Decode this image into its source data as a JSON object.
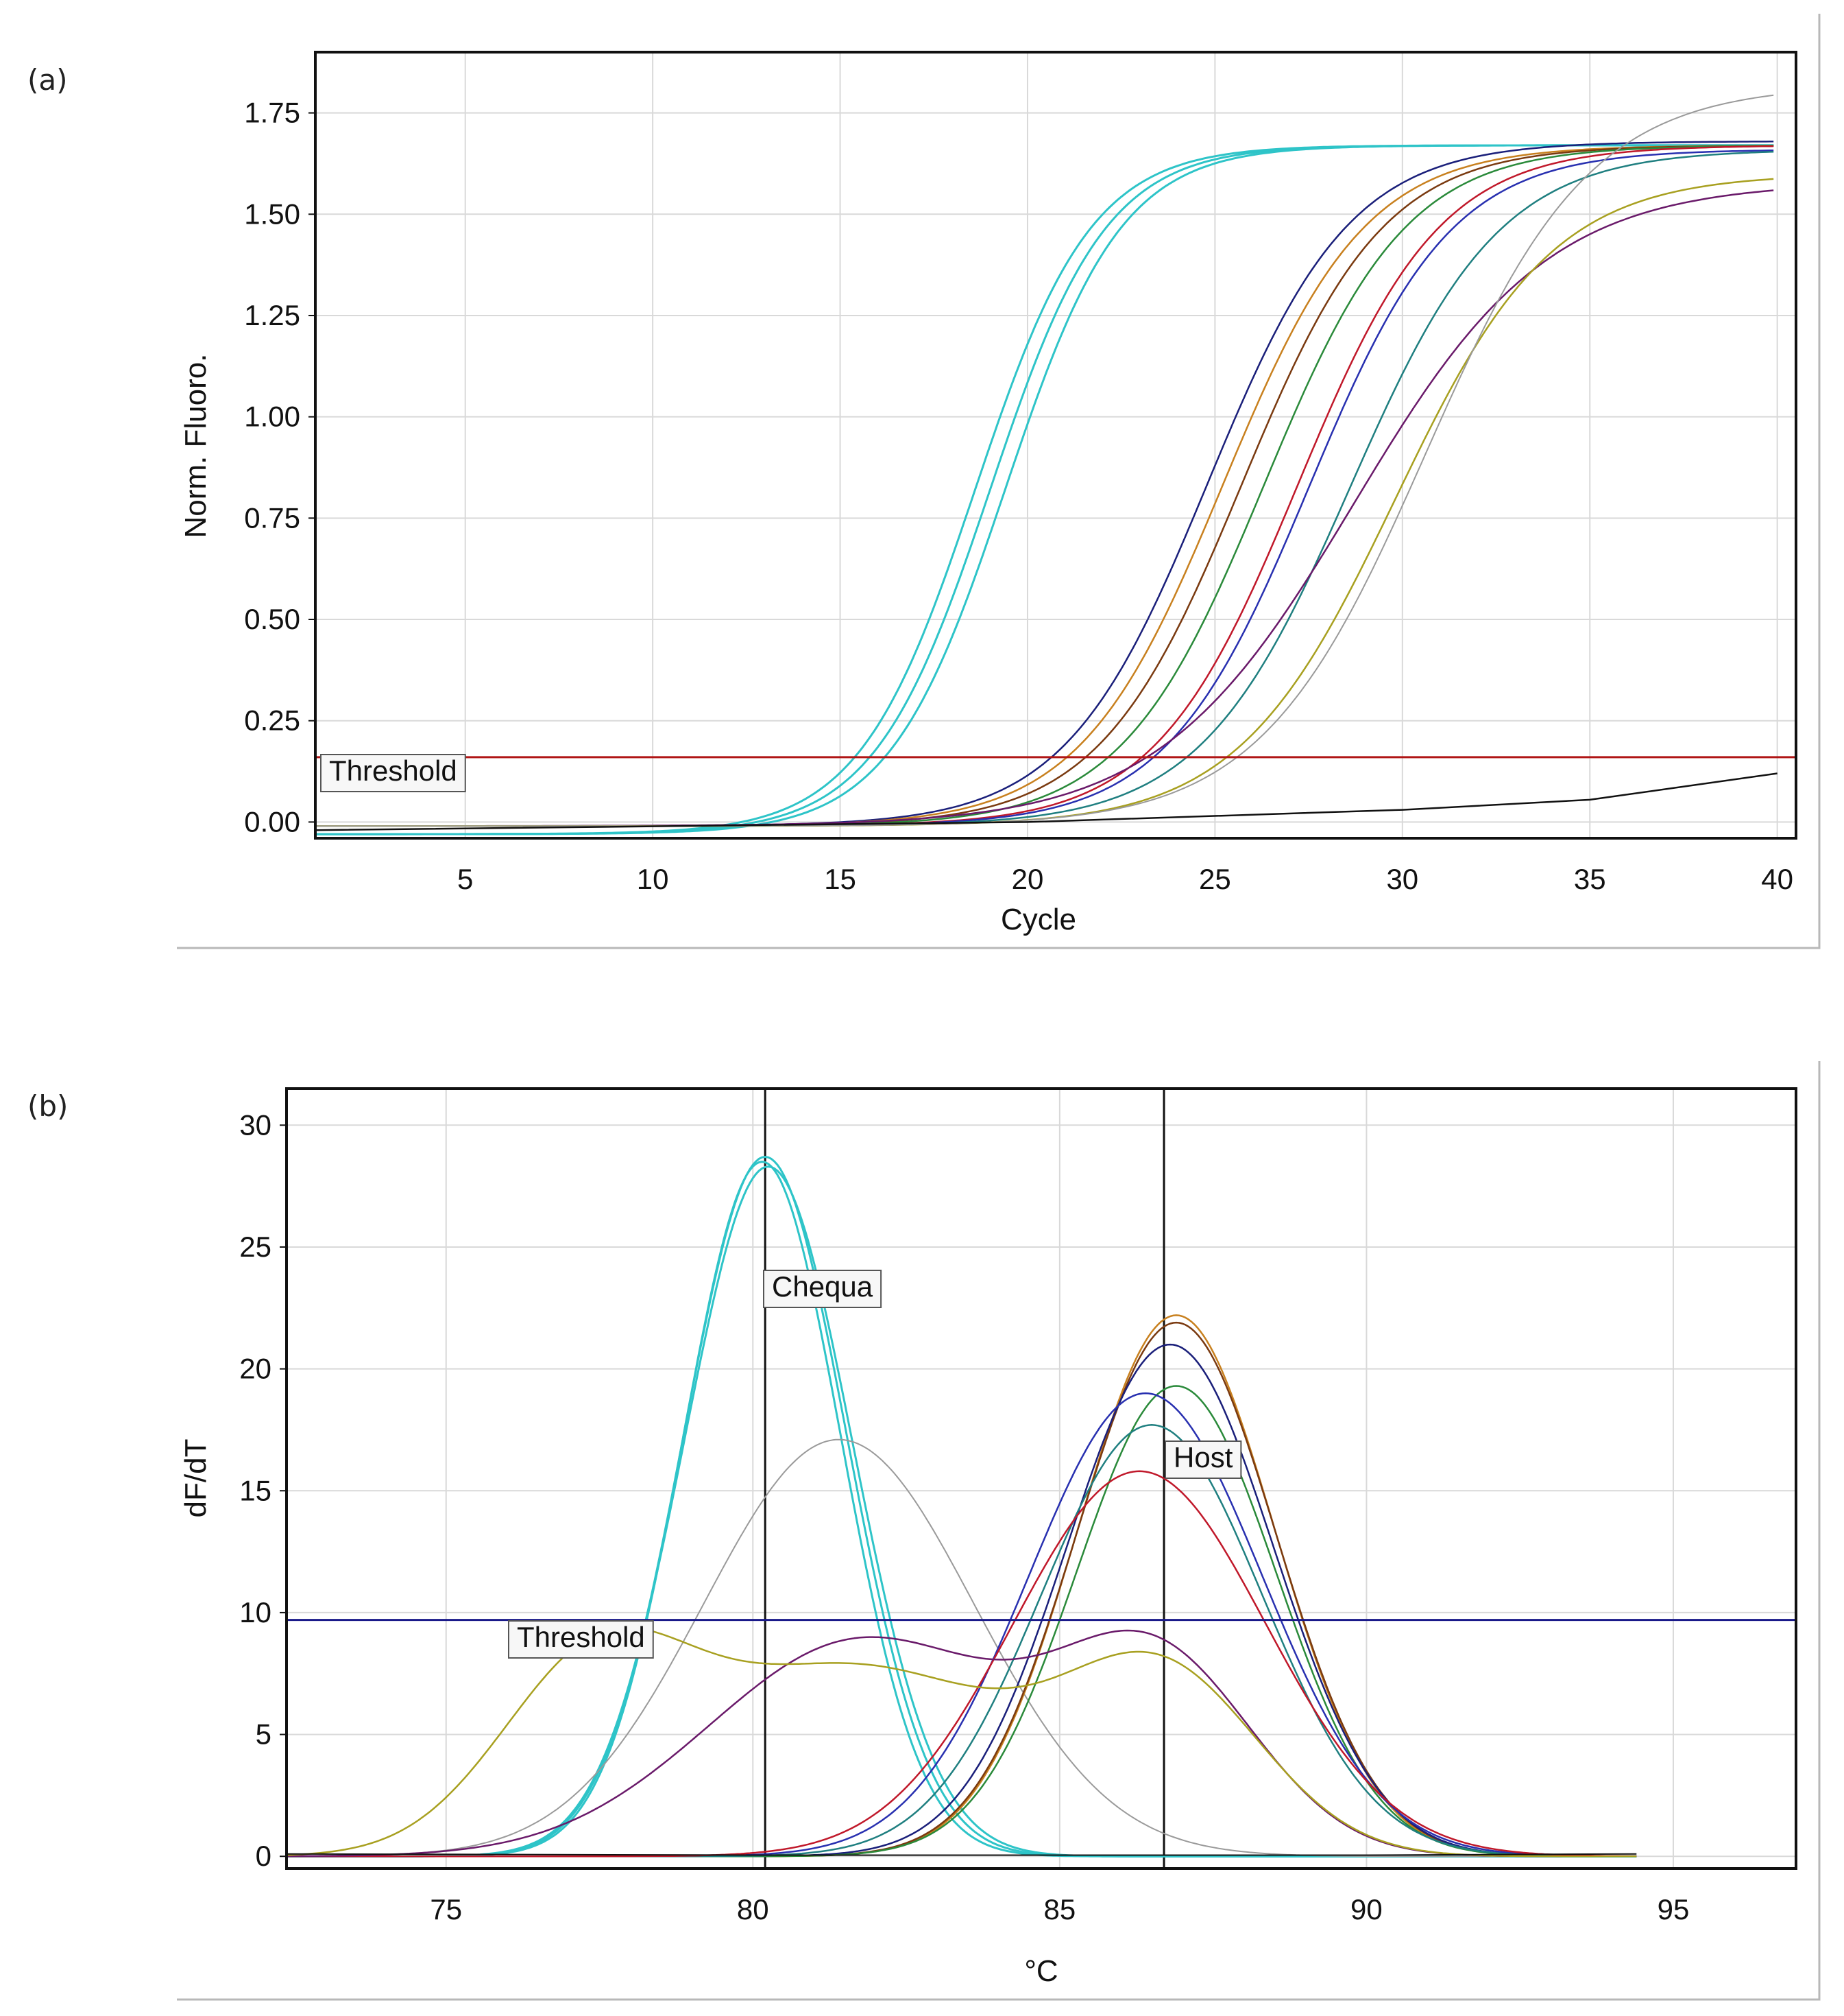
{
  "figure": {
    "panel_a_label": "(a)",
    "panel_b_label": "(b)"
  },
  "chart_data": [
    {
      "type": "line",
      "panel": "(a)",
      "xlabel": "Cycle",
      "ylabel": "Norm. Fluoro.",
      "xlim": [
        1,
        40.5
      ],
      "ylim": [
        -0.04,
        1.9
      ],
      "xticks": [
        5,
        10,
        15,
        20,
        25,
        30,
        35,
        40
      ],
      "yticks": [
        0.0,
        0.25,
        0.5,
        0.75,
        1.0,
        1.25,
        1.5,
        1.75
      ],
      "ytick_labels": [
        "0.00",
        "0.25",
        "0.50",
        "0.75",
        "1.00",
        "1.25",
        "1.50",
        "1.75"
      ],
      "grid": true,
      "threshold": {
        "label": "Threshold",
        "value": 0.16,
        "color": "#b01515"
      },
      "series": [
        {
          "name": "cyan-1",
          "color": "#2ec4c8",
          "curve": "sigmoid",
          "ct": 18.6,
          "plateau": 1.67,
          "slope": 1.55,
          "base": -0.03,
          "width": 3
        },
        {
          "name": "cyan-2",
          "color": "#2ec4c8",
          "curve": "sigmoid",
          "ct": 19.0,
          "plateau": 1.67,
          "slope": 1.55,
          "base": -0.03,
          "width": 3
        },
        {
          "name": "cyan-3",
          "color": "#2ec4c8",
          "curve": "sigmoid",
          "ct": 19.4,
          "plateau": 1.67,
          "slope": 1.55,
          "base": -0.03,
          "width": 3
        },
        {
          "name": "navy",
          "color": "#1a1f7a",
          "curve": "sigmoid",
          "ct": 24.8,
          "plateau": 1.68,
          "slope": 1.9,
          "base": -0.01,
          "width": 2.5
        },
        {
          "name": "orange",
          "color": "#c8801e",
          "curve": "sigmoid",
          "ct": 25.2,
          "plateau": 1.67,
          "slope": 1.9,
          "base": -0.01,
          "width": 2.5
        },
        {
          "name": "brown",
          "color": "#7a3a10",
          "curve": "sigmoid",
          "ct": 25.7,
          "plateau": 1.67,
          "slope": 1.9,
          "base": -0.01,
          "width": 2.5
        },
        {
          "name": "green",
          "color": "#2a8a3a",
          "curve": "sigmoid",
          "ct": 26.3,
          "plateau": 1.67,
          "slope": 1.9,
          "base": -0.01,
          "width": 2.5
        },
        {
          "name": "red",
          "color": "#c0182a",
          "curve": "sigmoid",
          "ct": 27.2,
          "plateau": 1.67,
          "slope": 1.9,
          "base": -0.01,
          "width": 2.5
        },
        {
          "name": "blue",
          "color": "#2830b0",
          "curve": "sigmoid",
          "ct": 27.5,
          "plateau": 1.66,
          "slope": 1.9,
          "base": -0.01,
          "width": 2.5
        },
        {
          "name": "teal",
          "color": "#1f7f80",
          "curve": "sigmoid",
          "ct": 28.6,
          "plateau": 1.66,
          "slope": 2.0,
          "base": -0.01,
          "width": 2.5
        },
        {
          "name": "purple",
          "color": "#6a1a6a",
          "curve": "sigmoid",
          "ct": 28.7,
          "plateau": 1.58,
          "slope": 2.6,
          "base": -0.01,
          "width": 2.5
        },
        {
          "name": "olive",
          "color": "#a8a020",
          "curve": "sigmoid",
          "ct": 29.8,
          "plateau": 1.6,
          "slope": 2.1,
          "base": -0.01,
          "width": 2.5
        },
        {
          "name": "gray",
          "color": "#9a9a9a",
          "curve": "sigmoid",
          "ct": 30.6,
          "plateau": 1.82,
          "slope": 2.2,
          "base": -0.01,
          "width": 2
        },
        {
          "name": "black-ntc",
          "color": "#111111",
          "curve": "linear",
          "points": [
            [
              1,
              -0.02
            ],
            [
              20,
              0.0
            ],
            [
              30,
              0.03
            ],
            [
              35,
              0.055
            ],
            [
              40,
              0.12
            ]
          ],
          "width": 2.5
        }
      ]
    },
    {
      "type": "line",
      "panel": "(b)",
      "xlabel": "°C",
      "ylabel": "dF/dT",
      "xlim": [
        72.4,
        97
      ],
      "ylim": [
        -0.5,
        31.5
      ],
      "xticks": [
        75,
        80,
        85,
        90,
        95
      ],
      "yticks": [
        0,
        5,
        10,
        15,
        20,
        25,
        30
      ],
      "ytick_labels": [
        "0",
        "5",
        "10",
        "15",
        "20",
        "25",
        "30"
      ],
      "grid": true,
      "threshold": {
        "label": "Threshold",
        "value": 9.7,
        "color": "#1a1a8a"
      },
      "peak_markers": [
        {
          "label": "Chequa",
          "value": 80.2
        },
        {
          "label": "Host",
          "value": 86.7
        }
      ],
      "series": [
        {
          "name": "cyan-1",
          "color": "#2ec4c8",
          "curve": "gauss",
          "x_range": [
            72.4,
            94.4
          ],
          "peaks": [
            [
              80.2,
              28.7,
              1.32
            ]
          ],
          "width": 3
        },
        {
          "name": "cyan-2",
          "color": "#2ec4c8",
          "curve": "gauss",
          "x_range": [
            72.4,
            94.4
          ],
          "peaks": [
            [
              80.15,
              28.5,
              1.28
            ]
          ],
          "width": 3
        },
        {
          "name": "cyan-3",
          "color": "#2ec4c8",
          "curve": "gauss",
          "x_range": [
            72.4,
            94.4
          ],
          "peaks": [
            [
              80.25,
              28.3,
              1.36
            ]
          ],
          "width": 3
        },
        {
          "name": "gray",
          "color": "#9a9a9a",
          "curve": "gauss",
          "x_range": [
            72.4,
            94.4
          ],
          "peaks": [
            [
              81.4,
              17.1,
              2.2
            ]
          ],
          "width": 2
        },
        {
          "name": "orange",
          "color": "#c8801e",
          "curve": "gauss",
          "x_range": [
            72.4,
            94.4
          ],
          "peaks": [
            [
              86.9,
              22.2,
              1.6
            ]
          ],
          "width": 2.5
        },
        {
          "name": "brown",
          "color": "#7a3a10",
          "curve": "gauss",
          "x_range": [
            72.4,
            94.4
          ],
          "peaks": [
            [
              86.9,
              21.9,
              1.62
            ]
          ],
          "width": 2.5
        },
        {
          "name": "navy",
          "color": "#1a1f7a",
          "curve": "gauss",
          "x_range": [
            72.4,
            94.4
          ],
          "peaks": [
            [
              86.8,
              21.0,
              1.68
            ]
          ],
          "width": 2.5
        },
        {
          "name": "green",
          "color": "#2a8a3a",
          "curve": "gauss",
          "x_range": [
            72.4,
            94.4
          ],
          "peaks": [
            [
              86.9,
              19.3,
              1.62
            ]
          ],
          "width": 2.5
        },
        {
          "name": "blue",
          "color": "#2830b0",
          "curve": "gauss",
          "x_range": [
            72.4,
            94.4
          ],
          "peaks": [
            [
              86.4,
              19.0,
              1.9
            ]
          ],
          "width": 2.5
        },
        {
          "name": "teal",
          "color": "#1f7f80",
          "curve": "gauss",
          "x_range": [
            72.4,
            94.4
          ],
          "peaks": [
            [
              86.5,
              17.7,
              1.8
            ]
          ],
          "width": 2.5
        },
        {
          "name": "red",
          "color": "#c0182a",
          "curve": "gauss",
          "x_range": [
            72.4,
            94.4
          ],
          "peaks": [
            [
              86.3,
              15.8,
              2.05
            ]
          ],
          "width": 2.5
        },
        {
          "name": "purple",
          "color": "#6a1a6a",
          "curve": "gauss",
          "x_range": [
            72.4,
            94.4
          ],
          "peaks": [
            [
              81.8,
              8.9,
              2.5
            ],
            [
              86.6,
              7.6,
              1.6
            ]
          ],
          "width": 2.5
        },
        {
          "name": "olive",
          "color": "#a8a020",
          "curve": "gauss",
          "x_range": [
            72.4,
            94.4
          ],
          "peaks": [
            [
              77.4,
              7.1,
              1.55
            ],
            [
              81.7,
              7.7,
              2.6
            ],
            [
              86.7,
              7.0,
              1.6
            ]
          ],
          "width": 2.5
        },
        {
          "name": "black-ntc",
          "color": "#111111",
          "curve": "linear",
          "points": [
            [
              72.4,
              0.1
            ],
            [
              80,
              0.05
            ],
            [
              90,
              0.05
            ],
            [
              94.4,
              0.1
            ]
          ],
          "width": 2
        }
      ]
    }
  ]
}
